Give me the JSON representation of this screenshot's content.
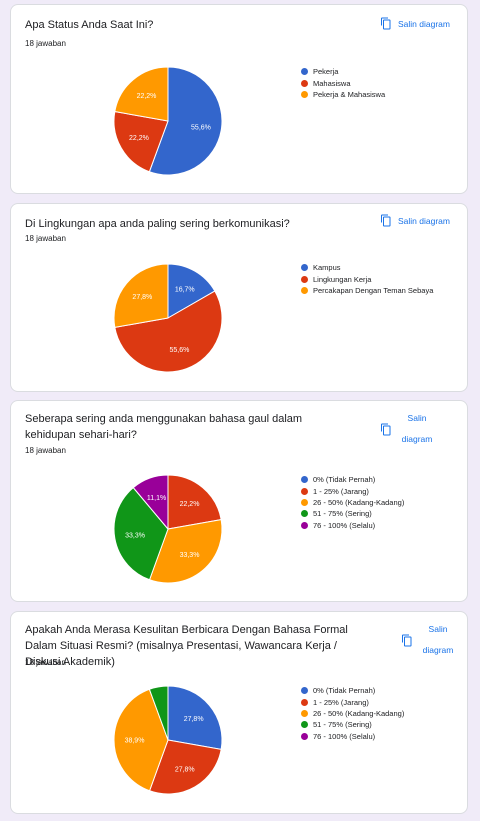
{
  "copy_label_inline": "Salin diagram",
  "copy_label_line1": "Salin",
  "copy_label_line2": "diagram",
  "colors": {
    "blue": "#3366cc",
    "red": "#dc3912",
    "orange": "#ff9900",
    "green": "#109618",
    "purple": "#990099"
  },
  "questions": [
    {
      "title": "Apa Status Anda Saat Ini?",
      "responses": "18 jawaban",
      "legend": [
        "Pekerja",
        "Mahasiswa",
        "Pekerja & Mahasiswa"
      ]
    },
    {
      "title": "Di Lingkungan apa anda paling sering berkomunikasi?",
      "responses": "18 jawaban",
      "legend": [
        "Kampus",
        "Lingkungan Kerja",
        "Percakapan Dengan Teman Sebaya"
      ]
    },
    {
      "title": "Seberapa sering anda menggunakan bahasa gaul dalam kehidupan sehari-hari?",
      "responses": "18 jawaban",
      "legend": [
        "0% (Tidak Pernah)",
        "1 - 25% (Jarang)",
        "26 - 50% (Kadang-Kadang)",
        "51 - 75% (Sering)",
        "76 - 100% (Selalu)"
      ]
    },
    {
      "title": "Apakah Anda Merasa Kesulitan Berbicara Dengan Bahasa Formal Dalam Situasi Resmi? (misalnya Presentasi, Wawancara Kerja / Diskusi Akademik)",
      "responses": "18 jawaban",
      "legend": [
        "0% (Tidak Pernah)",
        "1 - 25% (Jarang)",
        "26 - 50% (Kadang-Kadang)",
        "51 - 75% (Sering)",
        "76 - 100% (Selalu)"
      ]
    }
  ],
  "chart_data": [
    {
      "type": "pie",
      "categories": [
        "Pekerja",
        "Mahasiswa",
        "Pekerja & Mahasiswa"
      ],
      "values": [
        55.6,
        22.2,
        22.2
      ],
      "labels": [
        "55,6%",
        "22,2%",
        "22,2%"
      ],
      "colors": [
        "#3366cc",
        "#dc3912",
        "#ff9900"
      ],
      "legend": "right"
    },
    {
      "type": "pie",
      "categories": [
        "Kampus",
        "Lingkungan Kerja",
        "Percakapan Dengan Teman Sebaya"
      ],
      "values": [
        16.7,
        55.6,
        27.8
      ],
      "labels": [
        "16,7%",
        "55,6%",
        "27,8%"
      ],
      "colors": [
        "#3366cc",
        "#dc3912",
        "#ff9900"
      ],
      "legend": "right"
    },
    {
      "type": "pie",
      "categories": [
        "0% (Tidak Pernah)",
        "1 - 25% (Jarang)",
        "26 - 50% (Kadang-Kadang)",
        "51 - 75% (Sering)",
        "76 - 100% (Selalu)"
      ],
      "values": [
        0,
        22.2,
        33.3,
        33.3,
        11.1
      ],
      "labels": [
        "",
        "22,2%",
        "33,3%",
        "33,3%",
        "11,1%"
      ],
      "colors": [
        "#3366cc",
        "#dc3912",
        "#ff9900",
        "#109618",
        "#990099"
      ],
      "legend": "right"
    },
    {
      "type": "pie",
      "categories": [
        "0% (Tidak Pernah)",
        "1 - 25% (Jarang)",
        "26 - 50% (Kadang-Kadang)",
        "51 - 75% (Sering)",
        "76 - 100% (Selalu)"
      ],
      "values": [
        27.8,
        27.8,
        38.9,
        5.6,
        0
      ],
      "labels": [
        "27,8%",
        "27,8%",
        "38,9%",
        "",
        ""
      ],
      "colors": [
        "#3366cc",
        "#dc3912",
        "#ff9900",
        "#109618",
        "#990099"
      ],
      "legend": "right"
    }
  ]
}
